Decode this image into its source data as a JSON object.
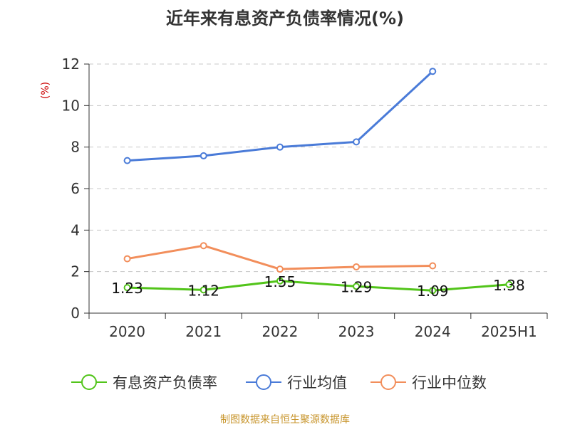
{
  "title": "近年来有息资产负债率情况(%)",
  "source": "制图数据来自恒生聚源数据库",
  "chart_data": {
    "type": "line",
    "title": "近年来有息资产负债率情况(%)",
    "xlabel": "",
    "ylabel": "(%)",
    "categories": [
      "2020",
      "2021",
      "2022",
      "2023",
      "2024",
      "2025H1"
    ],
    "ylim": [
      0,
      12
    ],
    "yticks": [
      0,
      2,
      4,
      6,
      8,
      10,
      12
    ],
    "grid": true,
    "legend_position": "bottom",
    "series": [
      {
        "name": "有息资产负债率",
        "color": "#52c41a",
        "values": [
          1.23,
          1.12,
          1.55,
          1.29,
          1.09,
          1.38
        ],
        "labels": [
          "1.23",
          "1.12",
          "1.55",
          "1.29",
          "1.09",
          "1.38"
        ]
      },
      {
        "name": "行业均值",
        "color": "#4a7bd8",
        "values": [
          7.35,
          7.58,
          8.0,
          8.25,
          11.65,
          null
        ]
      },
      {
        "name": "行业中位数",
        "color": "#f28e5b",
        "values": [
          2.62,
          3.25,
          2.12,
          2.23,
          2.28,
          null
        ]
      }
    ]
  }
}
